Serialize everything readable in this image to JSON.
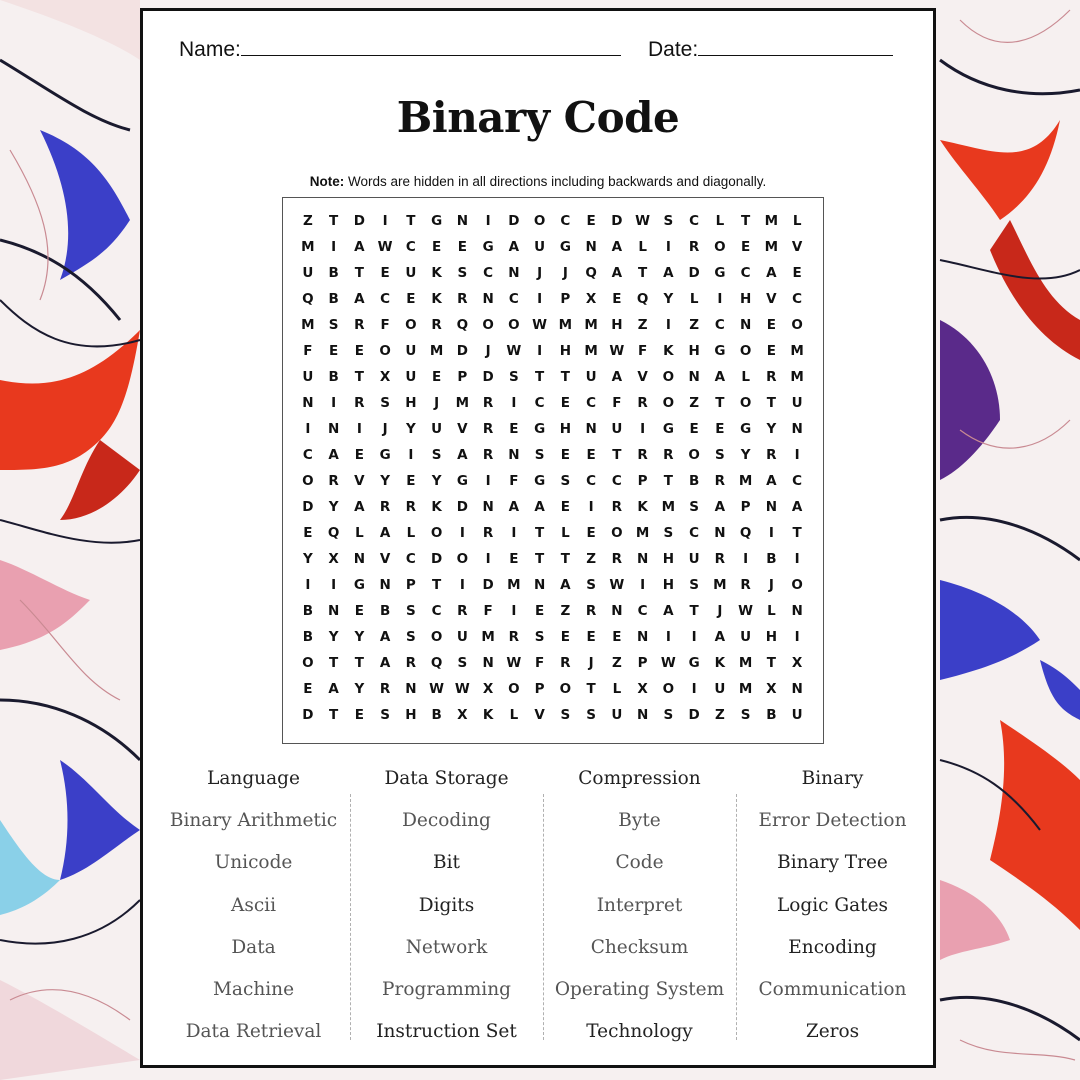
{
  "worksheet": {
    "name_label": "Name:",
    "date_label": "Date:",
    "title": "Binary Code",
    "note_bold": "Note:",
    "note_text": " Words are hidden in all directions including backwards and diagonally."
  },
  "grid": [
    [
      "Z",
      "T",
      "D",
      "I",
      "T",
      "G",
      "N",
      "I",
      "D",
      "O",
      "C",
      "E",
      "D",
      "W",
      "S",
      "C",
      "L",
      "T",
      "M",
      "L"
    ],
    [
      "M",
      "I",
      "A",
      "W",
      "C",
      "E",
      "E",
      "G",
      "A",
      "U",
      "G",
      "N",
      "A",
      "L",
      "I",
      "R",
      "O",
      "E",
      "M",
      "V"
    ],
    [
      "U",
      "B",
      "T",
      "E",
      "U",
      "K",
      "S",
      "C",
      "N",
      "J",
      "J",
      "Q",
      "A",
      "T",
      "A",
      "D",
      "G",
      "C",
      "A",
      "E"
    ],
    [
      "Q",
      "B",
      "A",
      "C",
      "E",
      "K",
      "R",
      "N",
      "C",
      "I",
      "P",
      "X",
      "E",
      "Q",
      "Y",
      "L",
      "I",
      "H",
      "V",
      "C"
    ],
    [
      "M",
      "S",
      "R",
      "F",
      "O",
      "R",
      "Q",
      "O",
      "O",
      "W",
      "M",
      "M",
      "H",
      "Z",
      "I",
      "Z",
      "C",
      "N",
      "E",
      "O"
    ],
    [
      "F",
      "E",
      "E",
      "O",
      "U",
      "M",
      "D",
      "J",
      "W",
      "I",
      "H",
      "M",
      "W",
      "F",
      "K",
      "H",
      "G",
      "O",
      "E",
      "M"
    ],
    [
      "U",
      "B",
      "T",
      "X",
      "U",
      "E",
      "P",
      "D",
      "S",
      "T",
      "T",
      "U",
      "A",
      "V",
      "O",
      "N",
      "A",
      "L",
      "R",
      "M"
    ],
    [
      "N",
      "I",
      "R",
      "S",
      "H",
      "J",
      "M",
      "R",
      "I",
      "C",
      "E",
      "C",
      "F",
      "R",
      "O",
      "Z",
      "T",
      "O",
      "T",
      "U"
    ],
    [
      "I",
      "N",
      "I",
      "J",
      "Y",
      "U",
      "V",
      "R",
      "E",
      "G",
      "H",
      "N",
      "U",
      "I",
      "G",
      "E",
      "E",
      "G",
      "Y",
      "N"
    ],
    [
      "C",
      "A",
      "E",
      "G",
      "I",
      "S",
      "A",
      "R",
      "N",
      "S",
      "E",
      "E",
      "T",
      "R",
      "R",
      "O",
      "S",
      "Y",
      "R",
      "I"
    ],
    [
      "O",
      "R",
      "V",
      "Y",
      "E",
      "Y",
      "G",
      "I",
      "F",
      "G",
      "S",
      "C",
      "C",
      "P",
      "T",
      "B",
      "R",
      "M",
      "A",
      "C"
    ],
    [
      "D",
      "Y",
      "A",
      "R",
      "R",
      "K",
      "D",
      "N",
      "A",
      "A",
      "E",
      "I",
      "R",
      "K",
      "M",
      "S",
      "A",
      "P",
      "N",
      "A"
    ],
    [
      "E",
      "Q",
      "L",
      "A",
      "L",
      "O",
      "I",
      "R",
      "I",
      "T",
      "L",
      "E",
      "O",
      "M",
      "S",
      "C",
      "N",
      "Q",
      "I",
      "T"
    ],
    [
      "Y",
      "X",
      "N",
      "V",
      "C",
      "D",
      "O",
      "I",
      "E",
      "T",
      "T",
      "Z",
      "R",
      "N",
      "H",
      "U",
      "R",
      "I",
      "B",
      "I"
    ],
    [
      "I",
      "I",
      "G",
      "N",
      "P",
      "T",
      "I",
      "D",
      "M",
      "N",
      "A",
      "S",
      "W",
      "I",
      "H",
      "S",
      "M",
      "R",
      "J",
      "O"
    ],
    [
      "B",
      "N",
      "E",
      "B",
      "S",
      "C",
      "R",
      "F",
      "I",
      "E",
      "Z",
      "R",
      "N",
      "C",
      "A",
      "T",
      "J",
      "W",
      "L",
      "N"
    ],
    [
      "B",
      "Y",
      "Y",
      "A",
      "S",
      "O",
      "U",
      "M",
      "R",
      "S",
      "E",
      "E",
      "E",
      "N",
      "I",
      "I",
      "A",
      "U",
      "H",
      "I"
    ],
    [
      "O",
      "T",
      "T",
      "A",
      "R",
      "Q",
      "S",
      "N",
      "W",
      "F",
      "R",
      "J",
      "Z",
      "P",
      "W",
      "G",
      "K",
      "M",
      "T",
      "X"
    ],
    [
      "E",
      "A",
      "Y",
      "R",
      "N",
      "W",
      "W",
      "X",
      "O",
      "P",
      "O",
      "T",
      "L",
      "X",
      "O",
      "I",
      "U",
      "M",
      "X",
      "N"
    ],
    [
      "D",
      "T",
      "E",
      "S",
      "H",
      "B",
      "X",
      "K",
      "L",
      "V",
      "S",
      "S",
      "U",
      "N",
      "S",
      "D",
      "Z",
      "S",
      "B",
      "U"
    ]
  ],
  "word_columns": [
    [
      "Language",
      "Binary Arithmetic",
      "Unicode",
      "Ascii",
      "Data",
      "Machine",
      "Data Retrieval"
    ],
    [
      "Data Storage",
      "Decoding",
      "Bit",
      "Digits",
      "Network",
      "Programming",
      "Instruction Set"
    ],
    [
      "Compression",
      "Byte",
      "Code",
      "Interpret",
      "Checksum",
      "Operating System",
      "Technology"
    ],
    [
      "Binary",
      "Error Detection",
      "Binary Tree",
      "Logic Gates",
      "Encoding",
      "Communication",
      "Zeros"
    ]
  ],
  "colors": {
    "accent_red": "#e8391e",
    "accent_blue": "#3b3fc8",
    "accent_purple": "#5a2a8a",
    "line_dark": "#1a1a2e"
  }
}
